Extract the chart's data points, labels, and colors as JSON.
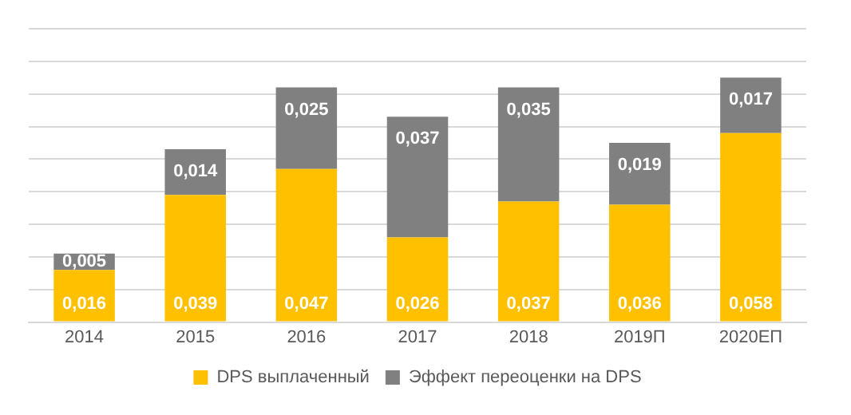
{
  "chart_data": {
    "type": "bar",
    "stacked": true,
    "categories": [
      "2014",
      "2015",
      "2016",
      "2017",
      "2018",
      "2019П",
      "2020ЕП"
    ],
    "series": [
      {
        "name": "DPS выплаченный",
        "color": "#ffc000",
        "values": [
          0.016,
          0.039,
          0.047,
          0.026,
          0.037,
          0.036,
          0.058
        ],
        "value_labels": [
          "0,016",
          "0,039",
          "0,047",
          "0,026",
          "0,037",
          "0,036",
          "0,058"
        ]
      },
      {
        "name": "Эффект переоценки на DPS",
        "color": "#808080",
        "values": [
          0.005,
          0.014,
          0.025,
          0.037,
          0.035,
          0.019,
          0.017
        ],
        "value_labels": [
          "0,005",
          "0,014",
          "0,025",
          "0,037",
          "0,035",
          "0,019",
          "0,017"
        ]
      }
    ],
    "ylim": [
      0,
      0.09
    ],
    "yticks": [
      {
        "value": 0,
        "label": null
      },
      {
        "value": 0.01,
        "label": null
      },
      {
        "value": 0.02,
        "label": null
      },
      {
        "value": 0.03,
        "label": null
      },
      {
        "value": 0.04,
        "label": null
      },
      {
        "value": 0.05,
        "label": null
      },
      {
        "value": 0.06,
        "label": null
      },
      {
        "value": 0.07,
        "label": null
      },
      {
        "value": 0.08,
        "label": null
      },
      {
        "value": 0.09,
        "label": null
      }
    ],
    "tick_labels": "x",
    "grid": "y",
    "legend": "bottom"
  }
}
